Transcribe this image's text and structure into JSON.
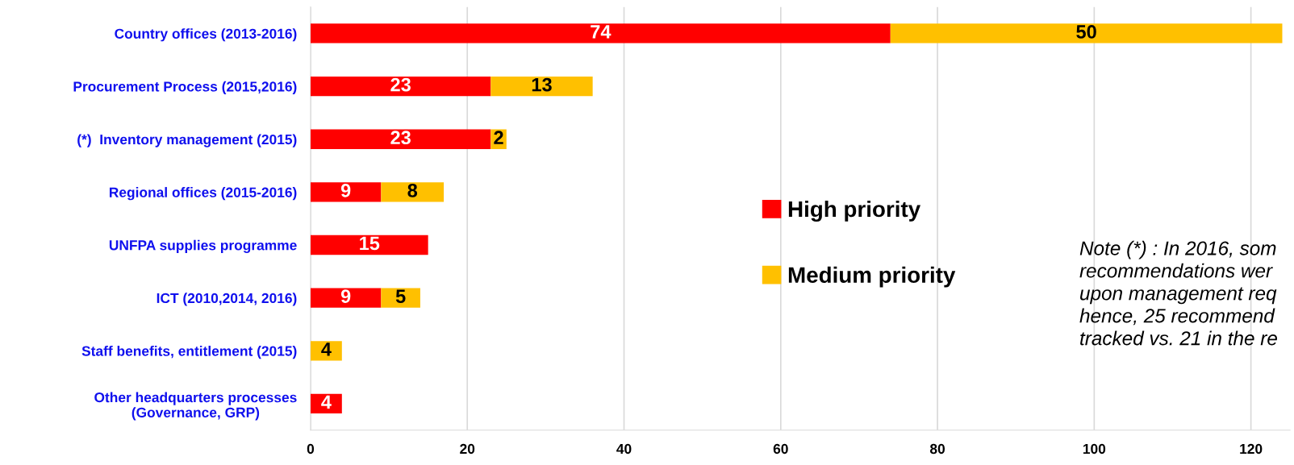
{
  "chart_data": {
    "type": "bar",
    "orientation": "horizontal",
    "stacked": true,
    "categories": [
      "Country offices (2013-2016)",
      "Procurement Process (2015,2016)",
      "(*)  Inventory management (2015)",
      "Regional offices (2015-2016)",
      "UNFPA supplies programme",
      "ICT (2010,2014, 2016)",
      "Staff benefits, entitlement (2015)",
      "Other headquarters processes\n(Governance, GRP)"
    ],
    "series": [
      {
        "name": "High priority",
        "color": "#ff0000",
        "values": [
          74,
          23,
          23,
          9,
          15,
          9,
          null,
          4
        ]
      },
      {
        "name": "Medium priority",
        "color": "#ffc000",
        "values": [
          50,
          13,
          2,
          8,
          null,
          5,
          4,
          null
        ]
      }
    ],
    "xlim": [
      0,
      125
    ],
    "xticks": [
      0,
      20,
      40,
      60,
      80,
      100,
      120
    ],
    "grid": "x",
    "legend": "center",
    "data_labels": true,
    "annotations": [
      "Note (*) : In 2016, som\nrecommendations wer\nupon management req\nhence, 25 recommend\ntracked vs. 21 in the re"
    ]
  }
}
